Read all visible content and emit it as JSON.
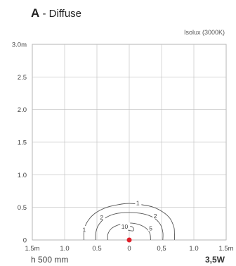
{
  "header": {
    "letter": "A",
    "title_rest": " - Diffuse",
    "subtitle": "Isolux (3000K)"
  },
  "footer": {
    "height_label": "h 500 mm",
    "power_label": "3,5W"
  },
  "chart_data": {
    "type": "contour",
    "title": "A - Diffuse",
    "subtitle": "Isolux (3000K)",
    "xlim": [
      -1.5,
      1.5
    ],
    "ylim": [
      0,
      3.0
    ],
    "x_ticks": [
      -1.5,
      -1.0,
      -0.5,
      0,
      0.5,
      1.0,
      1.5
    ],
    "x_tick_labels": [
      "1.5m",
      "1.0",
      "0.5",
      "0",
      "0,5",
      "1.0",
      "1.5m"
    ],
    "y_ticks": [
      0,
      0.5,
      1.0,
      1.5,
      2.0,
      2.5,
      3.0
    ],
    "y_tick_labels": [
      "0",
      "0.5",
      "1.0",
      "1.5",
      "2.0",
      "2.5",
      "3.0m"
    ],
    "grid": true,
    "source_point": {
      "x": 0,
      "y": 0,
      "color": "#e0202a"
    },
    "contours": [
      {
        "level": "1",
        "points": [
          [
            -0.7,
            0.0
          ],
          [
            -0.7,
            0.12
          ],
          [
            -0.66,
            0.26
          ],
          [
            -0.54,
            0.4
          ],
          [
            -0.35,
            0.5
          ],
          [
            -0.12,
            0.55
          ],
          [
            0.0,
            0.56
          ],
          [
            0.12,
            0.55
          ],
          [
            0.35,
            0.51
          ],
          [
            0.52,
            0.43
          ],
          [
            0.63,
            0.33
          ],
          [
            0.69,
            0.2
          ],
          [
            0.7,
            0.1
          ],
          [
            0.7,
            0.0
          ]
        ],
        "label_pos": {
          "x": 0.14,
          "y": 0.56
        },
        "secondary_label_pos": {
          "x": -0.69,
          "y": 0.15
        }
      },
      {
        "level": "2",
        "points": [
          [
            -0.52,
            0.0
          ],
          [
            -0.52,
            0.1
          ],
          [
            -0.48,
            0.22
          ],
          [
            -0.38,
            0.33
          ],
          [
            -0.22,
            0.4
          ],
          [
            0.0,
            0.42
          ],
          [
            0.22,
            0.4
          ],
          [
            0.38,
            0.34
          ],
          [
            0.48,
            0.24
          ],
          [
            0.52,
            0.12
          ],
          [
            0.52,
            0.0
          ]
        ],
        "label_pos": {
          "x": -0.42,
          "y": 0.34
        },
        "secondary_label_pos": {
          "x": 0.41,
          "y": 0.36
        }
      },
      {
        "level": "5",
        "points": [
          [
            -0.33,
            0.0
          ],
          [
            -0.33,
            0.09
          ],
          [
            -0.27,
            0.18
          ],
          [
            -0.14,
            0.24
          ],
          [
            0.0,
            0.26
          ],
          [
            0.14,
            0.24
          ],
          [
            0.26,
            0.18
          ],
          [
            0.32,
            0.1
          ],
          [
            0.33,
            0.0
          ]
        ],
        "label_pos": {
          "x": 0.34,
          "y": 0.17
        }
      },
      {
        "level": "10",
        "points": [
          [
            -0.07,
            0.17
          ],
          [
            0.0,
            0.21
          ],
          [
            0.06,
            0.19
          ],
          [
            0.06,
            0.14
          ],
          [
            -0.02,
            0.15
          ]
        ],
        "label_pos": {
          "x": -0.09,
          "y": 0.2
        }
      }
    ]
  }
}
